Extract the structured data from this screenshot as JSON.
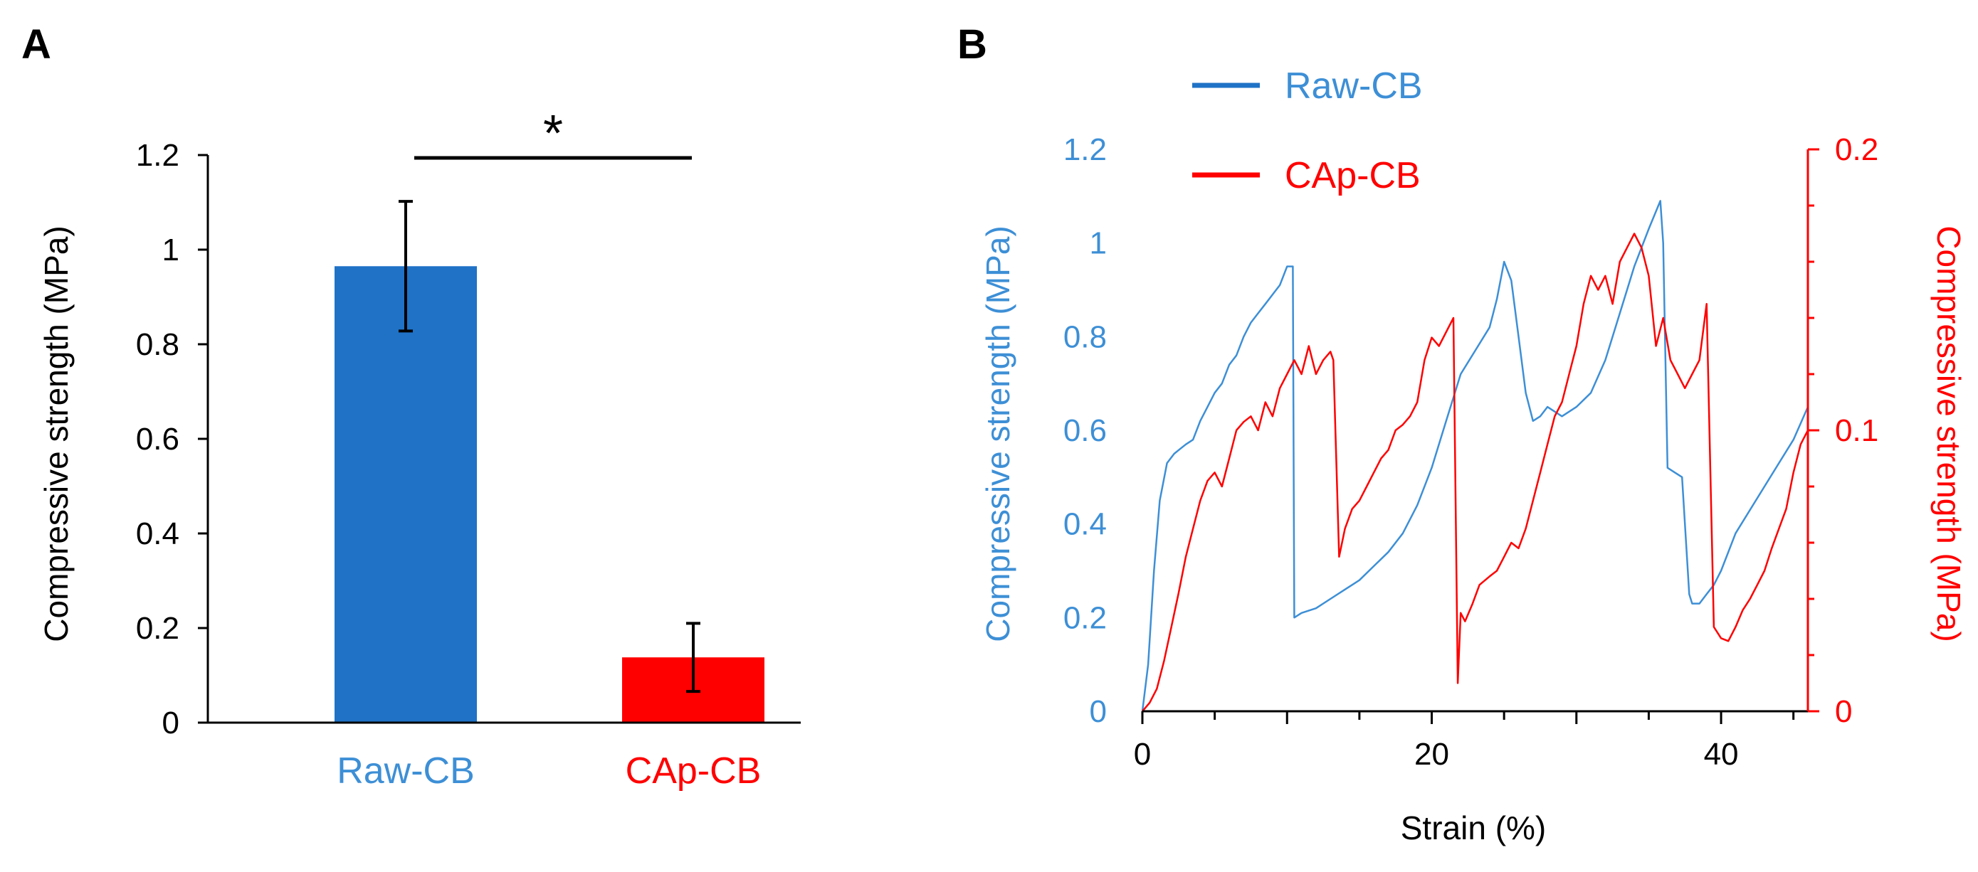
{
  "colors": {
    "blue": "#1f72c6",
    "red": "#ff0000",
    "black": "#000000",
    "blue_text": "#3d8fd6"
  },
  "chart_data": [
    {
      "panel": "A",
      "type": "bar",
      "ylabel": "Compressive strength  (MPa)",
      "ylim": [
        0,
        1.2
      ],
      "yticks": [
        "0",
        "0.2",
        "0.4",
        "0.6",
        "0.8",
        "1",
        "1.2"
      ],
      "categories": [
        "Raw-CB",
        "CAp-CB"
      ],
      "values": [
        0.965,
        0.138
      ],
      "errors": [
        0.137,
        0.072
      ],
      "significance": "*"
    },
    {
      "panel": "B",
      "type": "line",
      "xlabel": "Strain (%)",
      "xlim": [
        0,
        46
      ],
      "xticks": [
        "0",
        "20",
        "40"
      ],
      "ylabel_left": "Compressive strength  (MPa)",
      "ylim_left": [
        0,
        1.2
      ],
      "yticks_left": [
        "0",
        "0.2",
        "0.4",
        "0.6",
        "0.8",
        "1",
        "1.2"
      ],
      "ylabel_right": "Compressive strength  (MPa)",
      "ylim_right": [
        0,
        0.2
      ],
      "yticks_right": [
        "0",
        "0.1",
        "0.2"
      ],
      "series": [
        {
          "name": "Raw-CB",
          "axis": "left",
          "x": [
            0,
            0.4,
            0.8,
            1.2,
            1.7,
            2.2,
            2.6,
            3.0,
            3.5,
            4.0,
            4.5,
            5.0,
            5.5,
            6.0,
            6.5,
            7.0,
            7.5,
            8.0,
            8.5,
            9.0,
            9.5,
            10.0,
            10.4,
            10.5,
            11.0,
            12.0,
            13.0,
            14.0,
            15.0,
            16.0,
            17.0,
            18.0,
            19.0,
            20.0,
            21.0,
            22.0,
            23.0,
            24.0,
            24.5,
            25.0,
            25.5,
            26.0,
            26.5,
            27.0,
            27.5,
            28.0,
            29.0,
            30.0,
            31.0,
            32.0,
            33.0,
            34.0,
            35.0,
            35.8,
            36.0,
            36.3,
            36.8,
            37.3,
            37.8,
            38.0,
            38.5,
            39.0,
            39.5,
            40.0,
            40.5,
            41.0,
            42.0,
            43.0,
            44.0,
            45.0,
            46.0
          ],
          "y": [
            0.0,
            0.1,
            0.3,
            0.45,
            0.53,
            0.55,
            0.56,
            0.57,
            0.58,
            0.62,
            0.65,
            0.68,
            0.7,
            0.74,
            0.76,
            0.8,
            0.83,
            0.85,
            0.87,
            0.89,
            0.91,
            0.95,
            0.95,
            0.2,
            0.21,
            0.22,
            0.24,
            0.26,
            0.28,
            0.31,
            0.34,
            0.38,
            0.44,
            0.52,
            0.62,
            0.72,
            0.77,
            0.82,
            0.88,
            0.96,
            0.92,
            0.8,
            0.68,
            0.62,
            0.63,
            0.65,
            0.63,
            0.65,
            0.68,
            0.75,
            0.85,
            0.95,
            1.03,
            1.09,
            1.0,
            0.52,
            0.51,
            0.5,
            0.25,
            0.23,
            0.23,
            0.25,
            0.27,
            0.3,
            0.34,
            0.38,
            0.43,
            0.48,
            0.53,
            0.58,
            0.65
          ]
        },
        {
          "name": "CAp-CB",
          "axis": "right",
          "x": [
            0,
            0.5,
            1.0,
            1.5,
            2.0,
            2.5,
            3.0,
            3.5,
            4.0,
            4.5,
            5.0,
            5.5,
            6.0,
            6.5,
            7.0,
            7.5,
            8.0,
            8.5,
            9.0,
            9.5,
            10.0,
            10.5,
            11.0,
            11.5,
            12.0,
            12.5,
            13.0,
            13.2,
            13.6,
            14.0,
            14.5,
            15.0,
            15.5,
            16.0,
            16.5,
            17.0,
            17.5,
            18.0,
            18.5,
            19.0,
            19.5,
            20.0,
            20.5,
            21.0,
            21.5,
            21.8,
            22.0,
            22.3,
            22.8,
            23.3,
            24.0,
            24.5,
            25.0,
            25.5,
            26.0,
            26.5,
            27.0,
            27.5,
            28.0,
            28.5,
            29.0,
            29.5,
            30.0,
            30.5,
            31.0,
            31.5,
            32.0,
            32.5,
            33.0,
            33.5,
            34.0,
            34.5,
            35.0,
            35.5,
            36.0,
            36.5,
            37.0,
            37.5,
            38.0,
            38.5,
            39.0,
            39.5,
            40.0,
            40.5,
            41.0,
            41.5,
            42.0,
            42.5,
            43.0,
            43.5,
            44.0,
            44.5,
            45.0,
            45.5,
            46.0
          ],
          "y": [
            0.0,
            0.003,
            0.008,
            0.018,
            0.03,
            0.042,
            0.055,
            0.065,
            0.075,
            0.082,
            0.085,
            0.08,
            0.09,
            0.1,
            0.103,
            0.105,
            0.1,
            0.11,
            0.105,
            0.115,
            0.12,
            0.125,
            0.12,
            0.13,
            0.12,
            0.125,
            0.128,
            0.125,
            0.055,
            0.065,
            0.072,
            0.075,
            0.08,
            0.085,
            0.09,
            0.093,
            0.1,
            0.102,
            0.105,
            0.11,
            0.125,
            0.133,
            0.13,
            0.135,
            0.14,
            0.01,
            0.035,
            0.032,
            0.038,
            0.045,
            0.048,
            0.05,
            0.055,
            0.06,
            0.058,
            0.065,
            0.075,
            0.085,
            0.095,
            0.105,
            0.11,
            0.12,
            0.13,
            0.145,
            0.155,
            0.15,
            0.155,
            0.145,
            0.16,
            0.165,
            0.17,
            0.165,
            0.155,
            0.13,
            0.14,
            0.125,
            0.12,
            0.115,
            0.12,
            0.125,
            0.145,
            0.03,
            0.026,
            0.025,
            0.03,
            0.036,
            0.04,
            0.045,
            0.05,
            0.058,
            0.065,
            0.072,
            0.085,
            0.095,
            0.1
          ]
        }
      ]
    }
  ]
}
